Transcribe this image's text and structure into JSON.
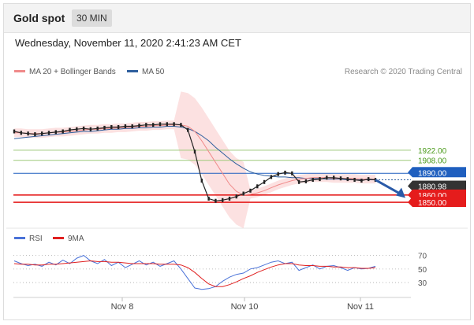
{
  "header": {
    "title": "Gold spot",
    "interval": "30 MIN"
  },
  "datetime": "Wednesday, November 11, 2020 2:41:23 AM CET",
  "legend_price": [
    {
      "label": "MA 20 + Bollinger Bands",
      "color": "#f08a8a"
    },
    {
      "label": "MA 50",
      "color": "#2f5f9e"
    }
  ],
  "legend_rsi": [
    {
      "label": "RSI",
      "color": "#4a72d8"
    },
    {
      "label": "9MA",
      "color": "#e02020"
    }
  ],
  "credit": "Research © 2020 Trading Central",
  "levels": [
    {
      "value": 1922.0,
      "label": "1922.00",
      "kind": "resistance",
      "color": "#9ec97a",
      "text_color": "#4a9a1a"
    },
    {
      "value": 1908.0,
      "label": "1908.00",
      "kind": "resistance",
      "color": "#9ec97a",
      "text_color": "#4a9a1a"
    },
    {
      "value": 1890.0,
      "label": "1890.00",
      "kind": "pivot",
      "color": "#1f5fbf",
      "text_color": "#ffffff"
    },
    {
      "value": 1880.98,
      "label": "1880.98",
      "kind": "last",
      "color": "#333333",
      "text_color": "#ffffff"
    },
    {
      "value": 1860.0,
      "label": "1860.00",
      "kind": "support",
      "color": "#e51c1c",
      "text_color": "#ffffff"
    },
    {
      "value": 1850.0,
      "label": "1850.00",
      "kind": "support",
      "color": "#e51c1c",
      "text_color": "#ffffff"
    }
  ],
  "chart_data": [
    {
      "type": "line",
      "title": "Gold spot 30 MIN",
      "x_tick_labels": [
        "Nov 8",
        "Nov 10",
        "Nov 11"
      ],
      "ylim": [
        1825,
        2010
      ],
      "series": [
        {
          "name": "Price",
          "color": "#222222",
          "values": [
            1948,
            1946,
            1945,
            1944,
            1945,
            1946,
            1947,
            1948,
            1950,
            1951,
            1952,
            1951,
            1952,
            1953,
            1954,
            1954,
            1955,
            1955,
            1956,
            1957,
            1957,
            1958,
            1958,
            1958,
            1957,
            1950,
            1920,
            1880,
            1855,
            1852,
            1853,
            1855,
            1858,
            1862,
            1866,
            1872,
            1878,
            1885,
            1889,
            1891,
            1890,
            1878,
            1879,
            1881,
            1882,
            1884,
            1884,
            1883,
            1882,
            1881,
            1880,
            1882,
            1880.98
          ]
        },
        {
          "name": "MA 20",
          "color": "#f08a8a",
          "values": [
            1946,
            1946,
            1945,
            1945,
            1945,
            1946,
            1947,
            1947,
            1948,
            1949,
            1950,
            1951,
            1951,
            1952,
            1952,
            1953,
            1953,
            1954,
            1955,
            1955,
            1956,
            1956,
            1957,
            1957,
            1957,
            1955,
            1948,
            1935,
            1920,
            1905,
            1890,
            1875,
            1865,
            1860,
            1861,
            1863,
            1866,
            1870,
            1874,
            1877,
            1880,
            1882,
            1883,
            1884,
            1884,
            1884,
            1883,
            1883,
            1883,
            1883,
            1882,
            1882,
            1882
          ]
        },
        {
          "name": "MA 50",
          "color": "#2f5f9e",
          "values": [
            1938,
            1939,
            1940,
            1941,
            1942,
            1943,
            1944,
            1945,
            1946,
            1947,
            1948,
            1948,
            1949,
            1950,
            1951,
            1951,
            1952,
            1952,
            1953,
            1953,
            1954,
            1954,
            1955,
            1955,
            1954,
            1952,
            1948,
            1942,
            1935,
            1926,
            1918,
            1910,
            1903,
            1897,
            1892,
            1889,
            1887,
            1886,
            1885,
            1885,
            1884,
            1884,
            1883,
            1883,
            1883,
            1882,
            1882,
            1882,
            1881,
            1881,
            1881,
            1881,
            1881
          ]
        }
      ]
    },
    {
      "type": "line",
      "title": "RSI",
      "ylim": [
        15,
        80
      ],
      "y_ticks": [
        70,
        50,
        30
      ],
      "series": [
        {
          "name": "RSI",
          "color": "#4a72d8",
          "values": [
            62,
            58,
            55,
            57,
            54,
            60,
            56,
            63,
            58,
            66,
            70,
            62,
            58,
            64,
            55,
            60,
            52,
            57,
            62,
            56,
            60,
            54,
            58,
            62,
            50,
            36,
            22,
            20,
            21,
            24,
            32,
            38,
            42,
            44,
            50,
            52,
            56,
            60,
            62,
            58,
            60,
            48,
            52,
            56,
            50,
            54,
            55,
            52,
            48,
            52,
            50,
            51,
            54
          ]
        },
        {
          "name": "9MA",
          "color": "#e02020",
          "values": [
            58,
            57,
            57,
            56,
            56,
            57,
            57,
            58,
            59,
            60,
            61,
            62,
            61,
            61,
            60,
            60,
            59,
            58,
            58,
            58,
            58,
            57,
            57,
            57,
            56,
            52,
            45,
            36,
            28,
            24,
            24,
            27,
            31,
            36,
            40,
            45,
            49,
            53,
            56,
            58,
            58,
            56,
            55,
            55,
            54,
            54,
            53,
            53,
            52,
            52,
            51,
            51,
            52
          ]
        }
      ]
    }
  ]
}
